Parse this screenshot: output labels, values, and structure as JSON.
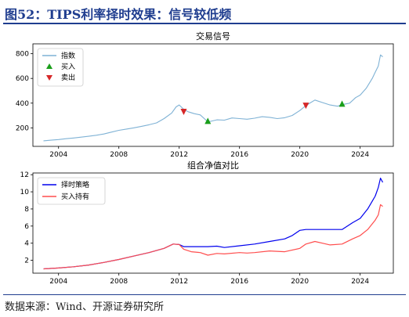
{
  "figure": {
    "title": "图52：TIPS利率择时效果：信号较低频",
    "source": "数据来源：Wind、开源证券研究所"
  },
  "chart_data": [
    {
      "type": "line",
      "title": "交易信号",
      "xlim": [
        2002.3,
        2026.2
      ],
      "ylim": [
        50,
        880
      ],
      "xticks": [
        2004,
        2008,
        2012,
        2016,
        2020,
        2024
      ],
      "yticks": [
        200,
        400,
        600,
        800
      ],
      "grid": false,
      "legend_position": "top-left",
      "series": [
        {
          "name": "指数",
          "color": "#7fb2d5",
          "x": [
            2003.0,
            2003.5,
            2004.0,
            2004.5,
            2005.0,
            2005.5,
            2006.0,
            2006.5,
            2007.0,
            2007.5,
            2008.0,
            2008.5,
            2009.0,
            2009.5,
            2010.0,
            2010.5,
            2011.0,
            2011.5,
            2011.8,
            2012.0,
            2012.3,
            2012.6,
            2013.0,
            2013.4,
            2013.8,
            2014.0,
            2014.5,
            2015.0,
            2015.5,
            2016.0,
            2016.5,
            2017.0,
            2017.5,
            2018.0,
            2018.5,
            2019.0,
            2019.5,
            2020.0,
            2020.3,
            2020.6,
            2021.0,
            2021.5,
            2022.0,
            2022.5,
            2022.9,
            2023.3,
            2023.7,
            2024.0,
            2024.4,
            2024.8,
            2025.0,
            2025.2,
            2025.35,
            2025.5
          ],
          "y": [
            95,
            100,
            105,
            112,
            118,
            125,
            132,
            140,
            150,
            165,
            180,
            190,
            200,
            212,
            225,
            240,
            275,
            320,
            370,
            385,
            350,
            330,
            315,
            305,
            260,
            250,
            265,
            262,
            280,
            275,
            270,
            278,
            290,
            285,
            275,
            282,
            300,
            340,
            370,
            395,
            425,
            405,
            385,
            375,
            390,
            400,
            445,
            465,
            520,
            600,
            650,
            700,
            790,
            775
          ]
        }
      ],
      "signals": [
        {
          "type": "buy",
          "label": "买入",
          "color": "#1a9e1a",
          "points": [
            [
              2013.9,
              250
            ],
            [
              2022.8,
              390
            ]
          ]
        },
        {
          "type": "sell",
          "label": "卖出",
          "color": "#d62728",
          "points": [
            [
              2012.3,
              335
            ],
            [
              2020.4,
              385
            ]
          ]
        }
      ]
    },
    {
      "type": "line",
      "title": "组合净值对比",
      "xlim": [
        2002.3,
        2026.2
      ],
      "ylim": [
        0.5,
        12.2
      ],
      "xticks": [
        2004,
        2008,
        2012,
        2016,
        2020,
        2024
      ],
      "yticks": [
        2,
        4,
        6,
        8,
        10,
        12
      ],
      "grid": false,
      "legend_position": "top-left",
      "series": [
        {
          "name": "择时策略",
          "color": "#0000ee",
          "x": [
            2003.0,
            2004.0,
            2005.0,
            2006.0,
            2007.0,
            2008.0,
            2009.0,
            2010.0,
            2011.0,
            2011.6,
            2012.0,
            2012.3,
            2013.0,
            2013.9,
            2014.5,
            2015.0,
            2016.0,
            2017.0,
            2018.0,
            2019.0,
            2019.5,
            2020.0,
            2020.4,
            2021.0,
            2021.5,
            2022.0,
            2022.8,
            2023.5,
            2024.0,
            2024.5,
            2025.0,
            2025.2,
            2025.35,
            2025.5
          ],
          "y": [
            1.0,
            1.1,
            1.25,
            1.45,
            1.75,
            2.1,
            2.5,
            2.9,
            3.4,
            3.9,
            3.85,
            3.6,
            3.6,
            3.6,
            3.65,
            3.5,
            3.7,
            3.9,
            4.2,
            4.5,
            4.9,
            5.5,
            5.6,
            5.6,
            5.6,
            5.6,
            5.6,
            6.4,
            6.9,
            8.0,
            9.5,
            10.5,
            11.6,
            11.1
          ]
        },
        {
          "name": "买入持有",
          "color": "#ff4d4d",
          "x": [
            2003.0,
            2004.0,
            2005.0,
            2006.0,
            2007.0,
            2008.0,
            2009.0,
            2010.0,
            2011.0,
            2011.6,
            2012.0,
            2012.3,
            2012.8,
            2013.4,
            2013.9,
            2014.5,
            2015.0,
            2016.0,
            2016.5,
            2017.0,
            2018.0,
            2019.0,
            2020.0,
            2020.4,
            2021.0,
            2021.5,
            2022.0,
            2022.8,
            2023.5,
            2024.0,
            2024.5,
            2025.0,
            2025.2,
            2025.35,
            2025.5
          ],
          "y": [
            1.0,
            1.1,
            1.25,
            1.45,
            1.75,
            2.1,
            2.5,
            2.9,
            3.4,
            3.9,
            3.85,
            3.3,
            3.0,
            2.9,
            2.6,
            2.8,
            2.75,
            2.9,
            2.85,
            2.9,
            3.1,
            3.0,
            3.4,
            3.9,
            4.2,
            4.0,
            3.8,
            3.9,
            4.5,
            4.9,
            5.6,
            6.7,
            7.3,
            8.5,
            8.3
          ]
        }
      ]
    }
  ]
}
